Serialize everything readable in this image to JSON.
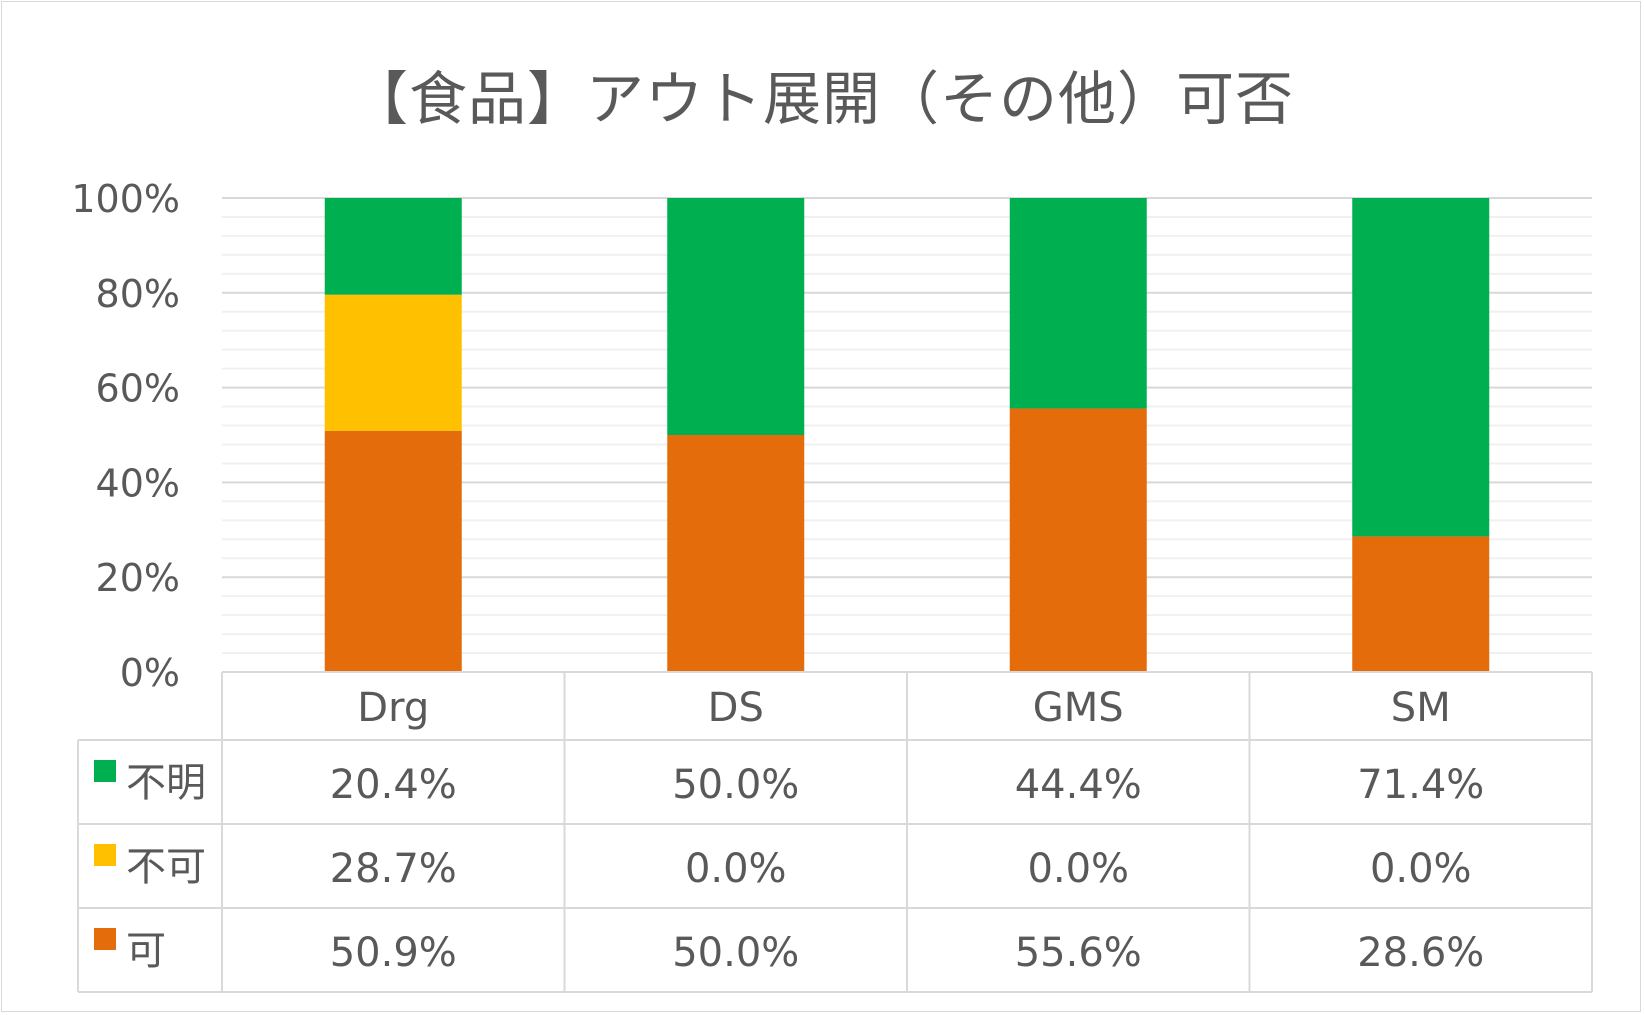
{
  "chart_data": {
    "type": "bar",
    "stacked": true,
    "title": "【食品】アウト展開（その他）可否",
    "categories": [
      "Drg",
      "DS",
      "GMS",
      "SM"
    ],
    "y_ticks": [
      "0%",
      "20%",
      "40%",
      "60%",
      "80%",
      "100%"
    ],
    "ylim": [
      0,
      100
    ],
    "legend_placement": "data-table",
    "series": [
      {
        "name": "可",
        "color": "#E46C0A",
        "values": [
          50.9,
          50.0,
          55.6,
          28.6
        ],
        "labels": [
          "50.9%",
          "50.0%",
          "55.6%",
          "28.6%"
        ]
      },
      {
        "name": "不可",
        "color": "#FFC000",
        "values": [
          28.7,
          0.0,
          0.0,
          0.0
        ],
        "labels": [
          "28.7%",
          "0.0%",
          "0.0%",
          "0.0%"
        ]
      },
      {
        "name": "不明",
        "color": "#00B050",
        "values": [
          20.4,
          50.0,
          44.4,
          71.4
        ],
        "labels": [
          "20.4%",
          "50.0%",
          "44.4%",
          "71.4%"
        ]
      }
    ],
    "table_row_order": [
      "不明",
      "不可",
      "可"
    ]
  }
}
